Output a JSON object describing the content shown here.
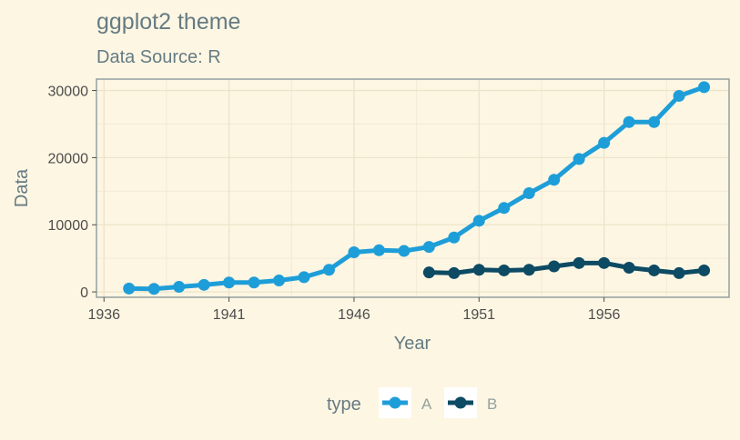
{
  "chart_data": {
    "type": "line",
    "title": "ggplot2 theme",
    "subtitle": "Data Source: R",
    "xlabel": "Year",
    "ylabel": "Data",
    "xlim": [
      1935.7,
      1961.0
    ],
    "ylim": [
      -800,
      31700
    ],
    "x_ticks": [
      1936,
      1941,
      1946,
      1951,
      1956
    ],
    "y_ticks": [
      0,
      10000,
      20000,
      30000
    ],
    "x_tick_labels": [
      "1936",
      "1941",
      "1946",
      "1951",
      "1956"
    ],
    "y_tick_labels": [
      "0",
      "10000",
      "20000",
      "30000"
    ],
    "grid": true,
    "legend": {
      "position": "bottom",
      "title": "type"
    },
    "series": [
      {
        "name": "A",
        "color": "#1e9ed8",
        "x": [
          1937,
          1938,
          1939,
          1940,
          1941,
          1942,
          1943,
          1944,
          1945,
          1946,
          1947,
          1948,
          1949,
          1950,
          1951,
          1952,
          1953,
          1954,
          1955,
          1956,
          1957,
          1958,
          1959,
          1960
        ],
        "y": [
          500,
          450,
          750,
          1050,
          1400,
          1400,
          1700,
          2200,
          3300,
          5900,
          6200,
          6100,
          6700,
          8100,
          10600,
          12500,
          14700,
          16700,
          19800,
          22200,
          25300,
          25300,
          29200,
          30500
        ]
      },
      {
        "name": "B",
        "color": "#0d4a63",
        "x": [
          1949,
          1950,
          1951,
          1952,
          1953,
          1954,
          1955,
          1956,
          1957,
          1958,
          1959,
          1960
        ],
        "y": [
          2900,
          2800,
          3300,
          3200,
          3300,
          3800,
          4300,
          4300,
          3600,
          3200,
          2800,
          3200
        ]
      }
    ]
  }
}
